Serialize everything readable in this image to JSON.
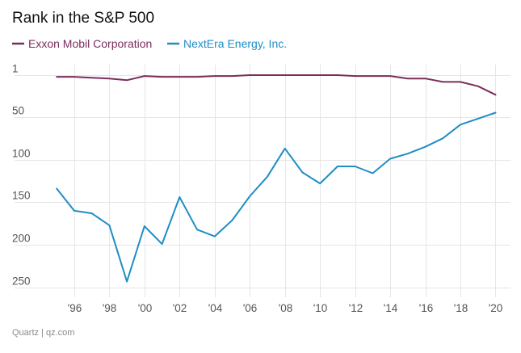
{
  "chart_data": {
    "type": "line",
    "title": "Rank in the S&P 500",
    "xlabel": "",
    "ylabel": "",
    "x": [
      1995,
      1996,
      1997,
      1998,
      1999,
      2000,
      2001,
      2002,
      2003,
      2004,
      2005,
      2006,
      2007,
      2008,
      2009,
      2010,
      2011,
      2012,
      2013,
      2014,
      2015,
      2016,
      2017,
      2018,
      2019,
      2020
    ],
    "xlim": [
      1994.9,
      2020.3
    ],
    "ylim": [
      1,
      265
    ],
    "y_inverted": true,
    "x_ticks": [
      1996,
      1998,
      2000,
      2002,
      2004,
      2006,
      2008,
      2010,
      2012,
      2014,
      2016,
      2018,
      2020
    ],
    "x_tick_labels": [
      "'96",
      "'98",
      "'00",
      "'02",
      "'04",
      "'06",
      "'08",
      "'10",
      "'12",
      "'14",
      "'16",
      "'18",
      "'20"
    ],
    "y_ticks": [
      1,
      50,
      100,
      150,
      200,
      250
    ],
    "y_tick_labels": [
      "1",
      "50",
      "100",
      "150",
      "200",
      "250"
    ],
    "grid": true,
    "legend_placement": "top-left",
    "series": [
      {
        "name": "Exxon Mobil Corporation",
        "color": "#7b2d5c",
        "values": [
          3,
          3,
          4,
          5,
          7,
          2,
          3,
          3,
          3,
          2,
          2,
          1,
          1,
          1,
          1,
          1,
          1,
          2,
          2,
          2,
          5,
          5,
          9,
          9,
          14,
          24
        ]
      },
      {
        "name": "NextEra Energy, Inc.",
        "color": "#1f8dc6",
        "values": [
          134,
          160,
          163,
          177,
          243,
          178,
          199,
          144,
          182,
          190,
          171,
          143,
          120,
          87,
          115,
          128,
          108,
          108,
          116,
          99,
          93,
          85,
          75,
          59,
          52,
          45
        ]
      }
    ]
  },
  "footer": {
    "source": "Quartz | qz.com"
  }
}
